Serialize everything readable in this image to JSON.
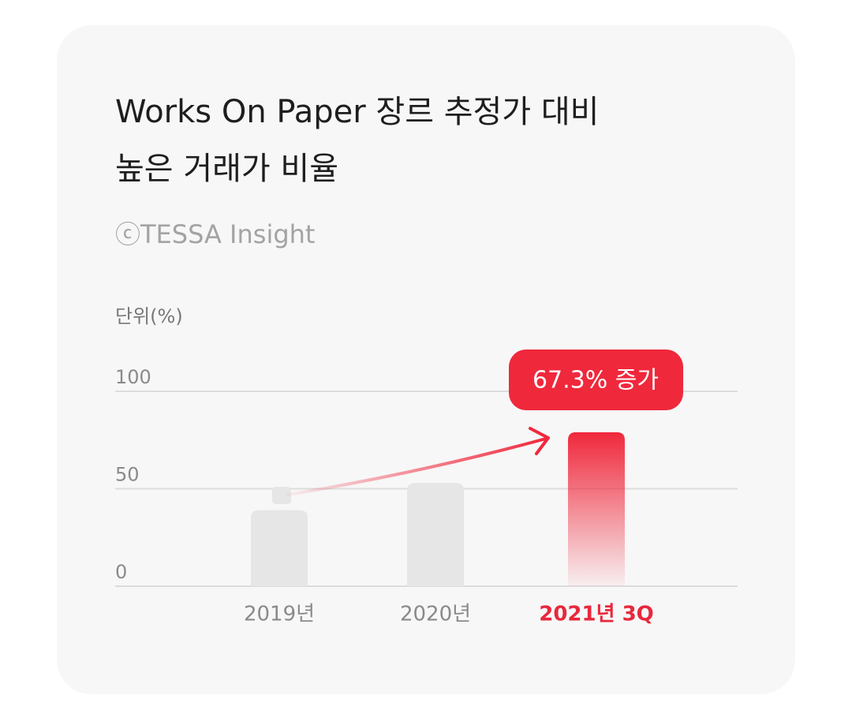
{
  "chart_data": {
    "type": "bar",
    "title": [
      "Works On Paper 장르 추정가 대비",
      "높은 거래가 비율"
    ],
    "subtitle": "ⓒTESSA Insight",
    "y_label": "단위(%)",
    "annotation": "67.3% 증가",
    "categories": [
      "2019년",
      "2020년",
      "2021년 3Q"
    ],
    "values": [
      39,
      53,
      79
    ],
    "colors": [
      "#e6e6e6",
      "#e6e6e6",
      "#f0283c"
    ],
    "label_colors": [
      "#8a8a8a",
      "#8a8a8a",
      "#e8283c"
    ],
    "ylim": [
      0,
      100
    ],
    "yticks": [
      0,
      50,
      100
    ],
    "grid": true
  }
}
